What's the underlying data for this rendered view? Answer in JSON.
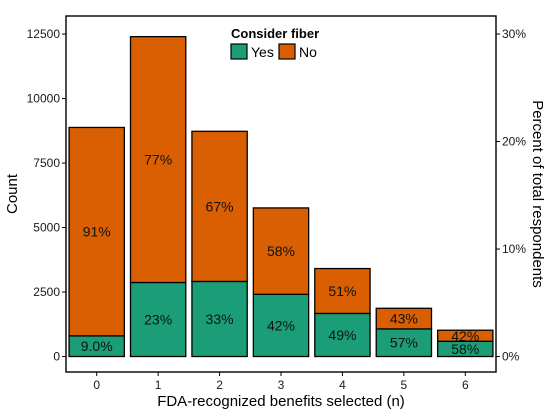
{
  "chart_data": {
    "type": "bar",
    "stacked": true,
    "categories": [
      "0",
      "1",
      "2",
      "3",
      "4",
      "5",
      "6"
    ],
    "series": [
      {
        "name": "Yes",
        "color": "#1b9e77",
        "values": [
          800,
          2870,
          2910,
          2410,
          1670,
          1070,
          590
        ],
        "labels": [
          "9.0%",
          "23%",
          "33%",
          "42%",
          "49%",
          "57%",
          "58%"
        ]
      },
      {
        "name": "No",
        "color": "#d95f02",
        "values": [
          8080,
          9530,
          5820,
          3350,
          1740,
          800,
          430
        ],
        "labels": [
          "91%",
          "77%",
          "67%",
          "58%",
          "51%",
          "43%",
          "42%"
        ]
      }
    ],
    "xlabel": "FDA-recognized benefits selected (n)",
    "ylabel": "Count",
    "y2label": "Percent of total respondents",
    "ylim": [
      -600,
      13200
    ],
    "yticks": [
      0,
      2500,
      5000,
      7500,
      10000,
      12500
    ],
    "ytick_labels": [
      "0",
      "2500",
      "5000",
      "7500",
      "10000",
      "12500"
    ],
    "y2ticks": [
      0,
      10,
      20,
      30
    ],
    "y2tick_labels": [
      "0%",
      "10%",
      "20%",
      "30%"
    ],
    "y2_total_respondents": 41667,
    "legend": {
      "title": "Consider fiber",
      "position": "top-center",
      "entries": [
        "Yes",
        "No"
      ]
    },
    "grid": false
  }
}
